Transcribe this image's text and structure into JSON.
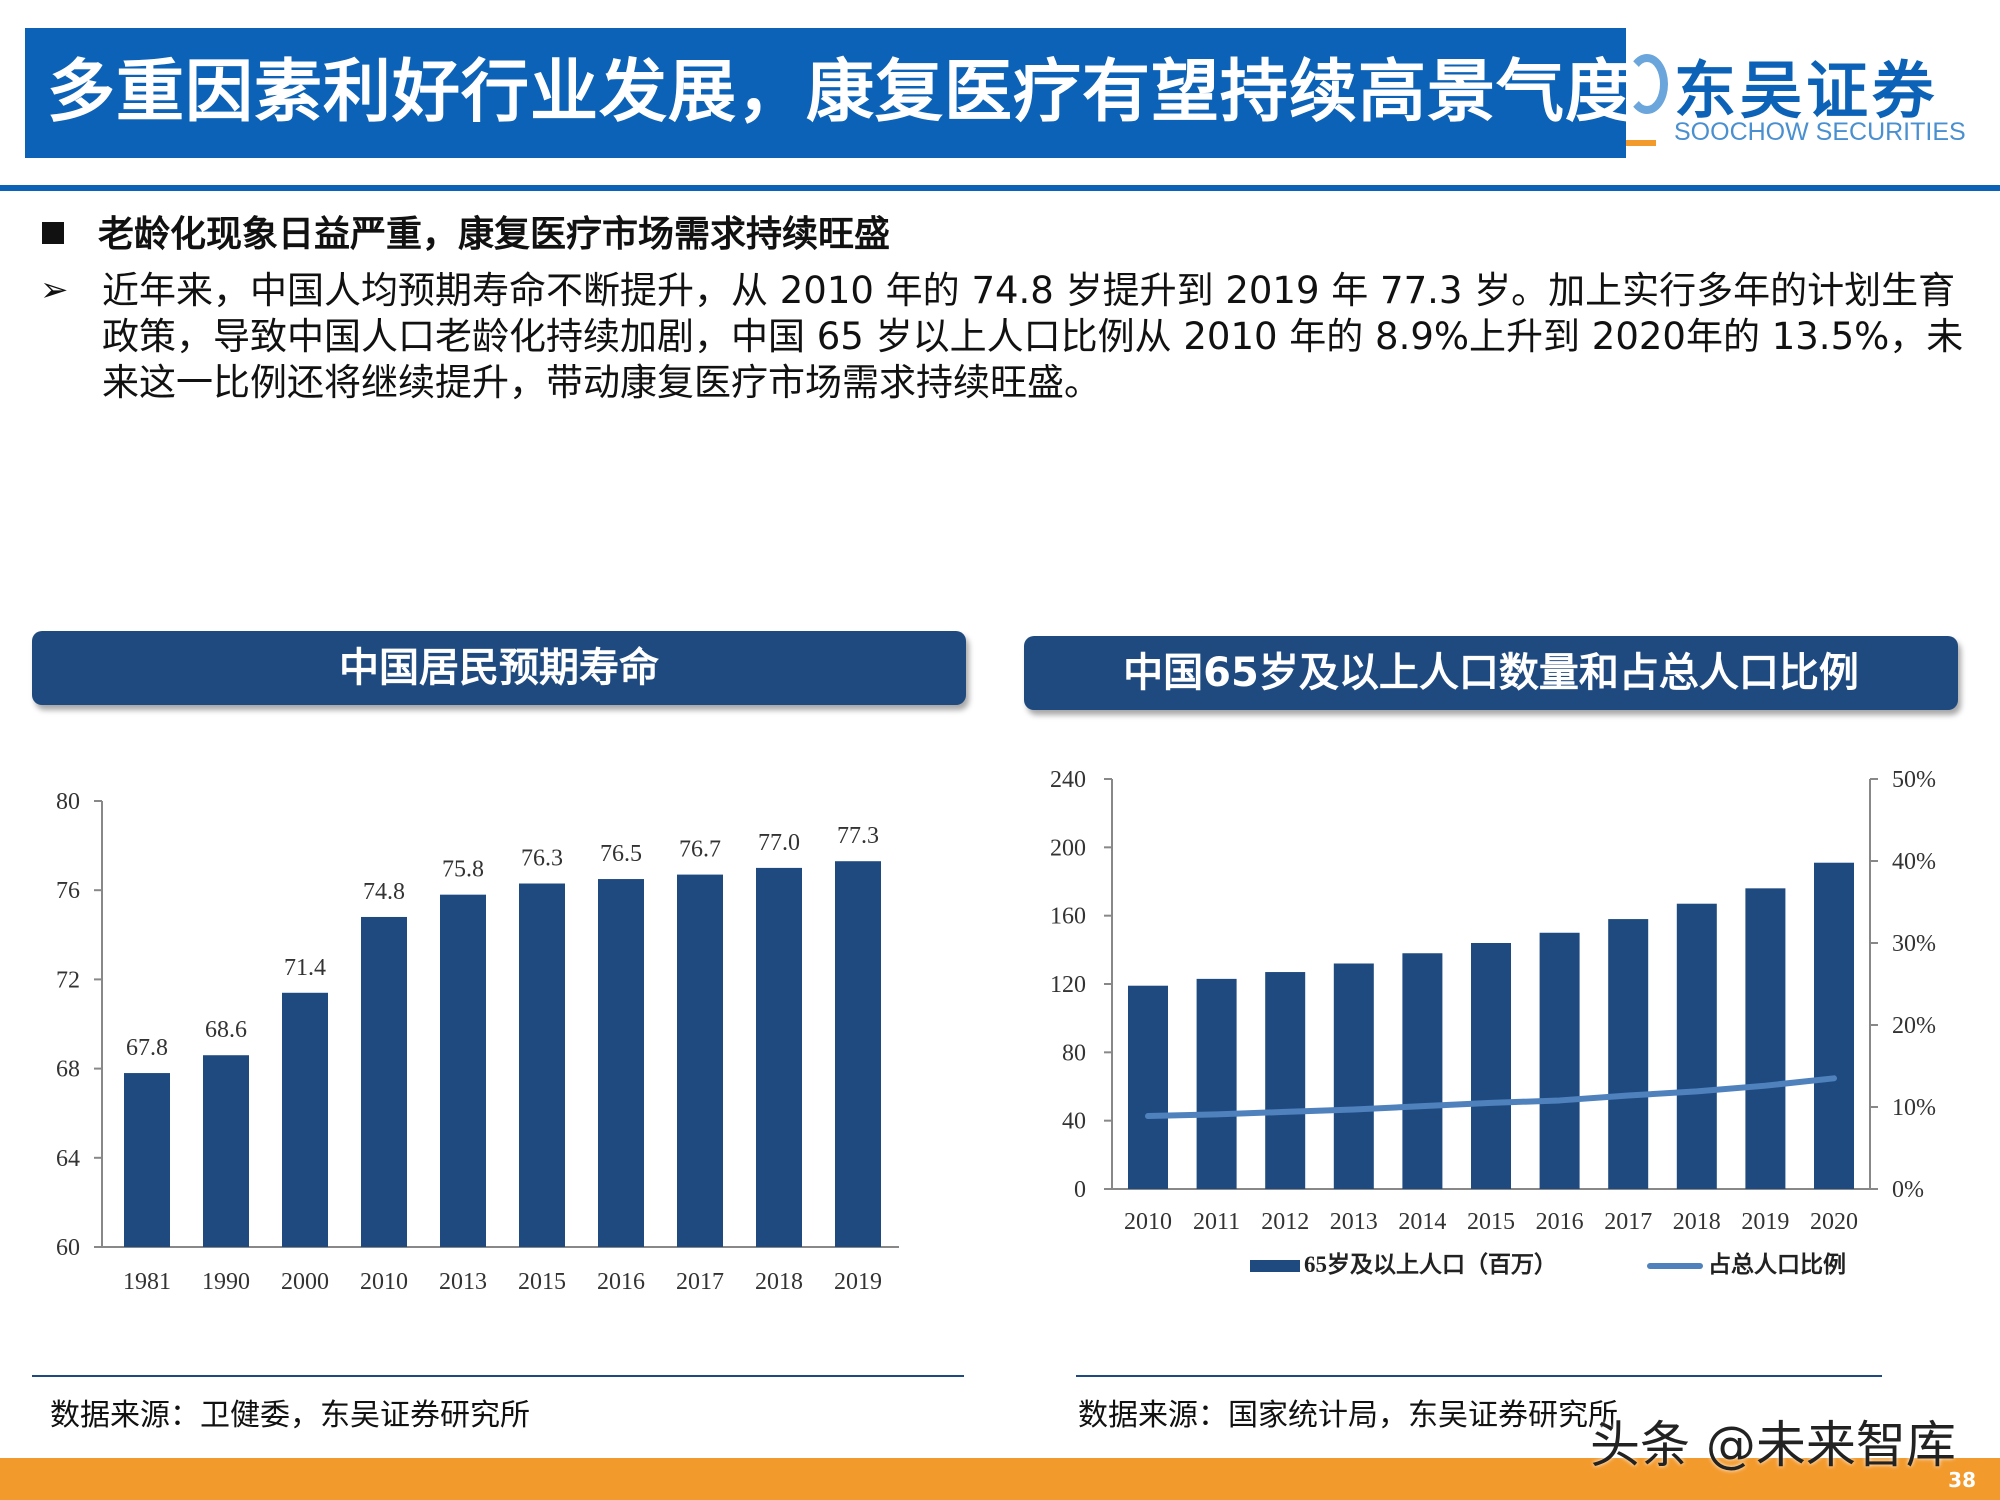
{
  "header": {
    "title": "多重因素利好行业发展，康复医疗有望持续高景气度",
    "logo_cn": "东吴证券",
    "logo_en": "SOOCHOW SECURITIES",
    "brand_color": "#0b62b6",
    "accent_color": "#f39a2d"
  },
  "section": {
    "heading": "老龄化现象日益严重，康复医疗市场需求持续旺盛",
    "arrow": "➢",
    "paragraph": "近年来，中国人均预期寿命不断提升，从 2010 年的 74.8 岁提升到 2019 年 77.3 岁。加上实行多年的计划生育政策，导致中国人口老龄化持续加剧，中国 65 岁以上人口比例从 2010 年的 8.9%上升到 2020年的 13.5%，未来这一比例还将继续提升，带动康复医疗市场需求持续旺盛。"
  },
  "chart_data": [
    {
      "type": "bar",
      "title": "中国居民预期寿命",
      "categories": [
        "1981",
        "1990",
        "2000",
        "2010",
        "2013",
        "2015",
        "2016",
        "2017",
        "2018",
        "2019"
      ],
      "values": [
        67.8,
        68.6,
        71.4,
        74.8,
        75.8,
        76.3,
        76.5,
        76.7,
        77.0,
        77.3
      ],
      "ylim": [
        60,
        80
      ],
      "yticks": [
        "60",
        "64",
        "68",
        "72",
        "76",
        "80"
      ],
      "data_labels": [
        "67.8",
        "68.6",
        "71.4",
        "74.8",
        "75.8",
        "76.3",
        "76.5",
        "76.7",
        "77.0",
        "77.3"
      ],
      "bar_color": "#1f4a80",
      "grid": false
    },
    {
      "type": "bar+line",
      "title": "中国65岁及以上人口数量和占总人口比例",
      "categories": [
        "2010",
        "2011",
        "2012",
        "2013",
        "2014",
        "2015",
        "2016",
        "2017",
        "2018",
        "2019",
        "2020"
      ],
      "series": [
        {
          "name": "65岁及以上人口（百万）",
          "type": "bar",
          "axis": "left",
          "values": [
            119,
            123,
            127,
            132,
            138,
            144,
            150,
            158,
            167,
            176,
            191
          ],
          "color": "#1f4a80"
        },
        {
          "name": "占总人口比例",
          "type": "line",
          "axis": "right",
          "values": [
            8.9,
            9.1,
            9.4,
            9.7,
            10.1,
            10.5,
            10.8,
            11.4,
            11.9,
            12.6,
            13.5
          ],
          "color": "#4f81bd"
        }
      ],
      "ylim": [
        0,
        240
      ],
      "yticks": [
        "0",
        "40",
        "80",
        "120",
        "160",
        "200",
        "240"
      ],
      "y2lim": [
        0,
        50
      ],
      "y2ticks": [
        "0%",
        "10%",
        "20%",
        "30%",
        "40%",
        "50%"
      ],
      "legend": "bottom",
      "grid": false
    }
  ],
  "sources": {
    "left": "数据来源：卫健委，东吴证券研究所",
    "right": "数据来源：国家统计局，东吴证券研究所"
  },
  "footer": {
    "page": "38",
    "watermark": "头条 @未来智库"
  }
}
